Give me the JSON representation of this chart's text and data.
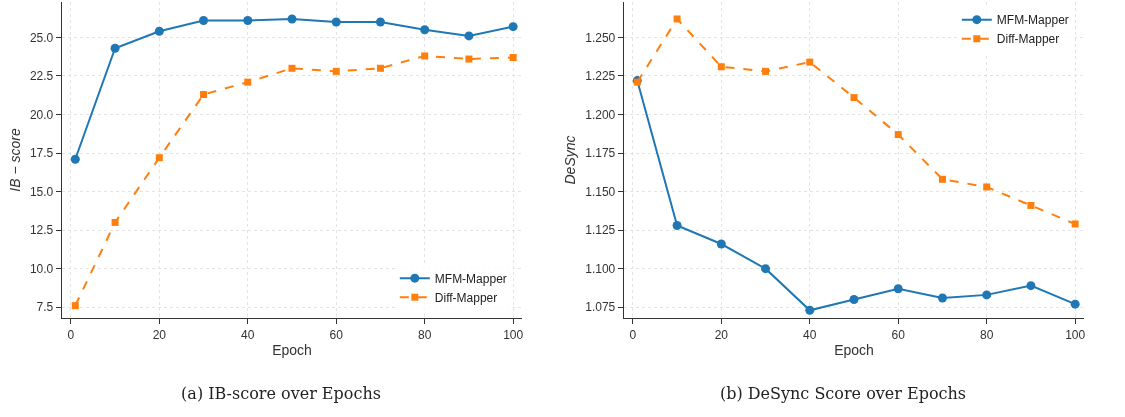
{
  "chart_data": [
    {
      "type": "line",
      "xlabel": "Epoch",
      "ylabel": "IB − score",
      "x": [
        1,
        10,
        20,
        30,
        40,
        50,
        60,
        70,
        80,
        90,
        100
      ],
      "xlim": [
        -2,
        102
      ],
      "xticks": [
        0,
        20,
        40,
        60,
        80,
        100
      ],
      "ylim": [
        6.8,
        27.3
      ],
      "yticks": [
        {
          "value": 7.5,
          "label": "7.5"
        },
        {
          "value": 10,
          "label": "10.0"
        },
        {
          "value": 12.5,
          "label": "12.5"
        },
        {
          "value": 15,
          "label": "15.0"
        },
        {
          "value": 17.5,
          "label": "17.5"
        },
        {
          "value": 20,
          "label": "20.0"
        },
        {
          "value": 22.5,
          "label": "22.5"
        },
        {
          "value": 25,
          "label": "25.0"
        }
      ],
      "grid": true,
      "legend": "bottom right",
      "series": [
        {
          "name": "MFM-Mapper",
          "color": "#1f77b4",
          "marker": "circle",
          "line_style": "solid",
          "values": [
            17.1,
            24.3,
            25.4,
            26.1,
            26.1,
            26.2,
            26.0,
            26.0,
            25.5,
            25.1,
            25.7
          ]
        },
        {
          "name": "Diff-Mapper",
          "color": "#ff7f0e",
          "marker": "square",
          "line_style": "dashed",
          "values": [
            7.6,
            13.0,
            17.2,
            21.3,
            22.1,
            23.0,
            22.8,
            23.0,
            23.8,
            23.6,
            23.7
          ]
        }
      ],
      "annotations": [
        "(a) IB-score over Epochs"
      ]
    },
    {
      "type": "line",
      "xlabel": "Epoch",
      "ylabel": "DeSync",
      "x": [
        1,
        10,
        20,
        30,
        40,
        50,
        60,
        70,
        80,
        90,
        100
      ],
      "xlim": [
        -2,
        102
      ],
      "xticks": [
        0,
        20,
        40,
        60,
        80,
        100
      ],
      "ylim": [
        1.068,
        1.273
      ],
      "yticks": [
        {
          "value": 1.075,
          "label": "1.075"
        },
        {
          "value": 1.1,
          "label": "1.100"
        },
        {
          "value": 1.125,
          "label": "1.125"
        },
        {
          "value": 1.15,
          "label": "1.150"
        },
        {
          "value": 1.175,
          "label": "1.175"
        },
        {
          "value": 1.2,
          "label": "1.200"
        },
        {
          "value": 1.225,
          "label": "1.225"
        },
        {
          "value": 1.25,
          "label": "1.250"
        }
      ],
      "grid": true,
      "legend": "top right",
      "series": [
        {
          "name": "MFM-Mapper",
          "color": "#1f77b4",
          "marker": "circle",
          "line_style": "solid",
          "values": [
            1.222,
            1.128,
            1.116,
            1.1,
            1.073,
            1.08,
            1.087,
            1.081,
            1.083,
            1.089,
            1.077
          ]
        },
        {
          "name": "Diff-Mapper",
          "color": "#ff7f0e",
          "marker": "square",
          "line_style": "dashed",
          "values": [
            1.221,
            1.262,
            1.231,
            1.228,
            1.234,
            1.211,
            1.187,
            1.158,
            1.153,
            1.141,
            1.129
          ]
        }
      ],
      "annotations": [
        "(b) DeSync Score over Epochs"
      ]
    }
  ]
}
